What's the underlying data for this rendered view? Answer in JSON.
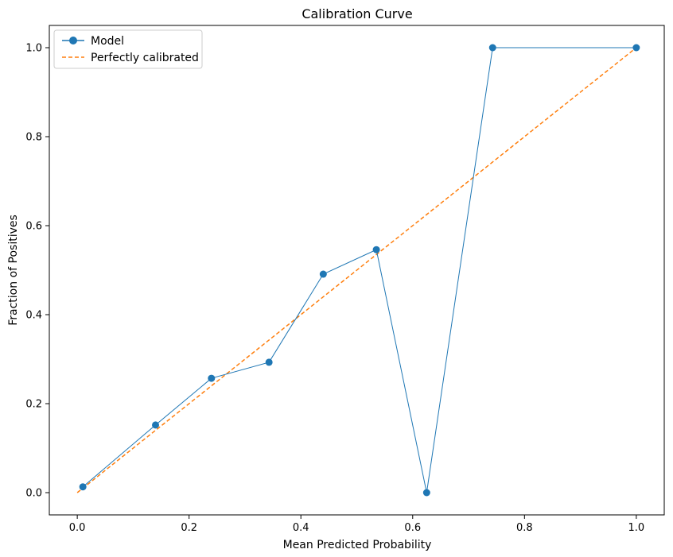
{
  "chart_data": {
    "type": "line",
    "title": "Calibration Curve",
    "xlabel": "Mean Predicted Probability",
    "ylabel": "Fraction of Positives",
    "xlim": [
      -0.05,
      1.05
    ],
    "ylim": [
      -0.05,
      1.05
    ],
    "xticks": [
      0.0,
      0.2,
      0.4,
      0.6,
      0.8,
      1.0
    ],
    "yticks": [
      0.0,
      0.2,
      0.4,
      0.6,
      0.8,
      1.0
    ],
    "xtick_labels": [
      "0.0",
      "0.2",
      "0.4",
      "0.6",
      "0.8",
      "1.0"
    ],
    "ytick_labels": [
      "0.0",
      "0.2",
      "0.4",
      "0.6",
      "0.8",
      "1.0"
    ],
    "grid": false,
    "legend_position": "top-left",
    "series": [
      {
        "name": "Model",
        "style": "solid-with-markers",
        "color": "#1f77b4",
        "x": [
          0.01,
          0.14,
          0.24,
          0.343,
          0.44,
          0.535,
          0.625,
          0.743,
          1.0
        ],
        "y": [
          0.013,
          0.152,
          0.257,
          0.293,
          0.491,
          0.546,
          0.0,
          1.0,
          1.0
        ]
      },
      {
        "name": "Perfectly calibrated",
        "style": "dashed",
        "color": "#ff7f0e",
        "x": [
          0.0,
          1.0
        ],
        "y": [
          0.0,
          1.0
        ]
      }
    ]
  }
}
